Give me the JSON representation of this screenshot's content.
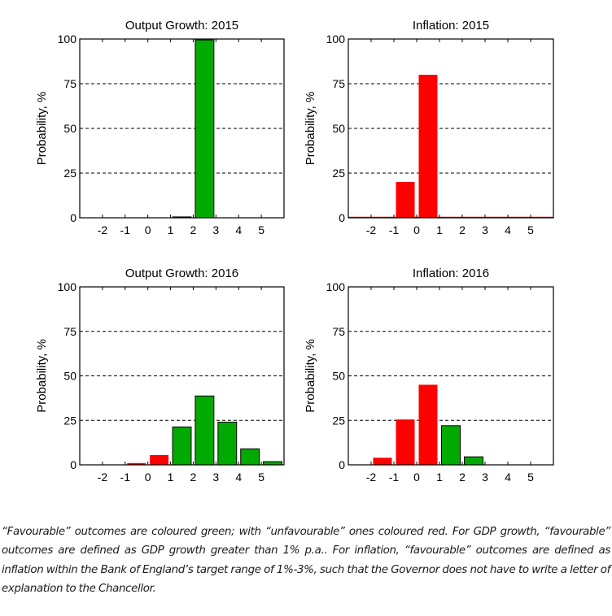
{
  "chart_data": [
    {
      "type": "bar",
      "title": "Output Growth: 2015",
      "xlabel": "",
      "ylabel": "Probability, %",
      "xlim": [
        -3,
        6
      ],
      "ylim": [
        0,
        100
      ],
      "yticks": [
        0,
        25,
        50,
        75,
        100
      ],
      "xticks": [
        -2,
        -1,
        0,
        1,
        2,
        3,
        4,
        5
      ],
      "grid": "horizontal dashed",
      "bins": [
        {
          "from": -3,
          "to": -2,
          "value": 0,
          "favourable": false
        },
        {
          "from": -2,
          "to": -1,
          "value": 0,
          "favourable": false
        },
        {
          "from": -1,
          "to": 0,
          "value": 0,
          "favourable": false
        },
        {
          "from": 0,
          "to": 1,
          "value": 0,
          "favourable": false
        },
        {
          "from": 1,
          "to": 2,
          "value": 0.5,
          "favourable": true
        },
        {
          "from": 2,
          "to": 3,
          "value": 99.5,
          "favourable": true
        },
        {
          "from": 3,
          "to": 4,
          "value": 0,
          "favourable": true
        },
        {
          "from": 4,
          "to": 5,
          "value": 0,
          "favourable": true
        },
        {
          "from": 5,
          "to": 6,
          "value": 0,
          "favourable": true
        }
      ],
      "zero_baseline_color": ""
    },
    {
      "type": "bar",
      "title": "Inflation: 2015",
      "xlabel": "",
      "ylabel": "Probability, %",
      "xlim": [
        -3,
        6
      ],
      "ylim": [
        0,
        100
      ],
      "yticks": [
        0,
        25,
        50,
        75,
        100
      ],
      "xticks": [
        -2,
        -1,
        0,
        1,
        2,
        3,
        4,
        5
      ],
      "grid": "horizontal dashed",
      "bins": [
        {
          "from": -3,
          "to": -2,
          "value": 0,
          "favourable": false
        },
        {
          "from": -2,
          "to": -1,
          "value": 0,
          "favourable": false
        },
        {
          "from": -1,
          "to": 0,
          "value": 20,
          "favourable": false
        },
        {
          "from": 0,
          "to": 1,
          "value": 80,
          "favourable": false
        },
        {
          "from": 1,
          "to": 2,
          "value": 0,
          "favourable": false
        },
        {
          "from": 2,
          "to": 3,
          "value": 0,
          "favourable": false
        },
        {
          "from": 3,
          "to": 4,
          "value": 0,
          "favourable": false
        },
        {
          "from": 4,
          "to": 5,
          "value": 0,
          "favourable": false
        },
        {
          "from": 5,
          "to": 6,
          "value": 0,
          "favourable": false
        }
      ],
      "zero_baseline_color": "#ff0000"
    },
    {
      "type": "bar",
      "title": "Output Growth: 2016",
      "xlabel": "",
      "ylabel": "Probability, %",
      "xlim": [
        -3,
        6
      ],
      "ylim": [
        0,
        100
      ],
      "yticks": [
        0,
        25,
        50,
        75,
        100
      ],
      "xticks": [
        -2,
        -1,
        0,
        1,
        2,
        3,
        4,
        5
      ],
      "grid": "horizontal dashed",
      "bins": [
        {
          "from": -3,
          "to": -2,
          "value": 0,
          "favourable": false
        },
        {
          "from": -2,
          "to": -1,
          "value": 0,
          "favourable": false
        },
        {
          "from": -1,
          "to": 0,
          "value": 1,
          "favourable": false
        },
        {
          "from": 0,
          "to": 1,
          "value": 5.5,
          "favourable": false
        },
        {
          "from": 1,
          "to": 2,
          "value": 21.3,
          "favourable": true
        },
        {
          "from": 2,
          "to": 3,
          "value": 38.7,
          "favourable": true
        },
        {
          "from": 3,
          "to": 4,
          "value": 24,
          "favourable": true
        },
        {
          "from": 4,
          "to": 5,
          "value": 9,
          "favourable": true
        },
        {
          "from": 5,
          "to": 6,
          "value": 1.8,
          "favourable": true
        }
      ],
      "zero_baseline_color": ""
    },
    {
      "type": "bar",
      "title": "Inflation: 2016",
      "xlabel": "",
      "ylabel": "Probability, %",
      "xlim": [
        -3,
        6
      ],
      "ylim": [
        0,
        100
      ],
      "yticks": [
        0,
        25,
        50,
        75,
        100
      ],
      "xticks": [
        -2,
        -1,
        0,
        1,
        2,
        3,
        4,
        5
      ],
      "grid": "horizontal dashed",
      "bins": [
        {
          "from": -3,
          "to": -2,
          "value": 0,
          "favourable": false
        },
        {
          "from": -2,
          "to": -1,
          "value": 4,
          "favourable": false
        },
        {
          "from": -1,
          "to": 0,
          "value": 25.5,
          "favourable": false
        },
        {
          "from": 0,
          "to": 1,
          "value": 45,
          "favourable": false
        },
        {
          "from": 1,
          "to": 2,
          "value": 22,
          "favourable": true
        },
        {
          "from": 2,
          "to": 3,
          "value": 4.5,
          "favourable": true
        },
        {
          "from": 3,
          "to": 4,
          "value": 0,
          "favourable": false
        },
        {
          "from": 4,
          "to": 5,
          "value": 0,
          "favourable": false
        },
        {
          "from": 5,
          "to": 6,
          "value": 0,
          "favourable": false
        }
      ],
      "zero_baseline_color": ""
    }
  ],
  "colors": {
    "favourable": "#00aa00",
    "unfavourable": "#ff0000",
    "outline": "#000000"
  },
  "caption": {
    "text": "“Favourable” outcomes are coloured green; with “unfavourable” ones coloured red. For GDP growth, “favourable” outcomes are defined as GDP growth greater than 1% p.a.. For inflation, “favourable” outcomes are defined as inflation within the Bank of England’s target range of 1%-3%, such that the Governor does not have to write a letter of explanation to the Chancellor."
  }
}
